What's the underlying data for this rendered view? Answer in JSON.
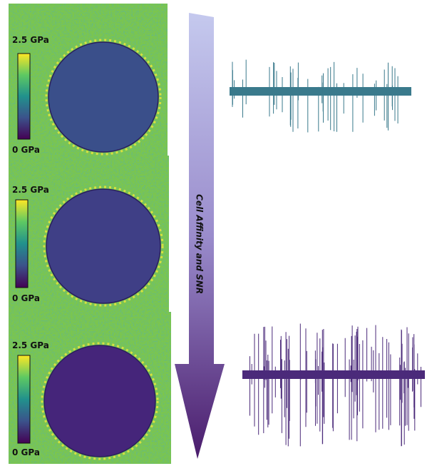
{
  "panels": [
    {
      "scale_max": "2.5 GPa",
      "scale_min": "0 GPa"
    },
    {
      "scale_max": "2.5 GPa",
      "scale_min": "0 GPa"
    },
    {
      "scale_max": "2.5 GPa",
      "scale_min": "0 GPa"
    }
  ],
  "arrow_label": "Cell Affinity and SNR"
}
